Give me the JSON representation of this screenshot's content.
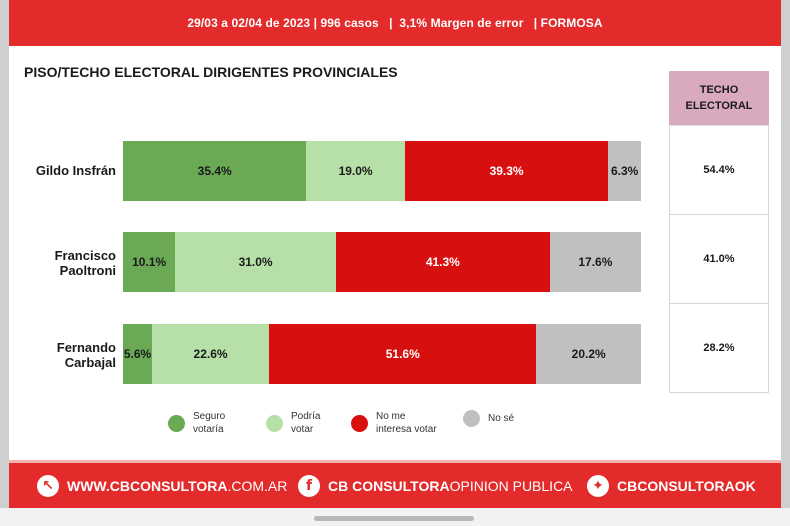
{
  "header": {
    "text": "29/03 a 02/04 de 2023 | 996 casos   |  3,1% Margen de error   | FORMOSA"
  },
  "title": "PISO/TECHO ELECTORAL DIRIGENTES PROVINCIALES",
  "colors": {
    "seguro": "#6aaa55",
    "podria": "#b6e0a8",
    "no_me_interesa": "#d80f0f",
    "no_se": "#c0c0c0",
    "brand_red": "#e32b2b",
    "techo_header": "#d9aabd"
  },
  "chart_data": {
    "type": "bar",
    "orientation": "horizontal",
    "stacked": true,
    "title": "PISO/TECHO ELECTORAL DIRIGENTES PROVINCIALES",
    "categories": [
      "Gildo Insfrán",
      "Francisco Paoltroni",
      "Fernando Carbajal"
    ],
    "series": [
      {
        "name": "Seguro votaría",
        "color": "#6aaa55",
        "values": [
          35.4,
          10.1,
          5.6
        ],
        "labels": [
          "35.4%",
          "10.1%",
          "5.6%"
        ]
      },
      {
        "name": "Podría votar",
        "color": "#b6e0a8",
        "values": [
          19.0,
          31.0,
          22.6
        ],
        "labels": [
          "19.0%",
          "31.0%",
          "22.6%"
        ]
      },
      {
        "name": "No me interesa votar",
        "color": "#d80f0f",
        "values": [
          39.3,
          41.3,
          51.6
        ],
        "labels": [
          "39.3%",
          "41.3%",
          "51.6%"
        ]
      },
      {
        "name": "No sé",
        "color": "#c0c0c0",
        "values": [
          6.3,
          17.6,
          20.2
        ],
        "labels": [
          "6.3%",
          "17.6%",
          "20.2%"
        ]
      }
    ],
    "legend": "bottom",
    "grid": false
  },
  "candidates": [
    {
      "label_line1": "Gildo Insfrán",
      "label_line2": ""
    },
    {
      "label_line1": "Francisco",
      "label_line2": "Paoltroni"
    },
    {
      "label_line1": "Fernando",
      "label_line2": "Carbajal"
    }
  ],
  "techo": {
    "header_line1": "TECHO",
    "header_line2": "ELECTORAL",
    "values": [
      "54.4%",
      "41.0%",
      "28.2%"
    ]
  },
  "legend": [
    {
      "line1": "Seguro",
      "line2": "votaría"
    },
    {
      "line1": "Podría",
      "line2": "votar"
    },
    {
      "line1": "No me",
      "line2": "interesa votar"
    },
    {
      "line1": "No sé",
      "line2": ""
    }
  ],
  "footer": {
    "web_bold": "WWW.CBCONSULTORA",
    "web_thin": ".COM.AR",
    "fb_bold": "CB CONSULTORA",
    "fb_thin": " OPINION PUBLICA",
    "tw_bold": "CBCONSULTORAOK",
    "fb_glyph": "f",
    "tw_glyph": "✦",
    "web_glyph": "↖"
  }
}
